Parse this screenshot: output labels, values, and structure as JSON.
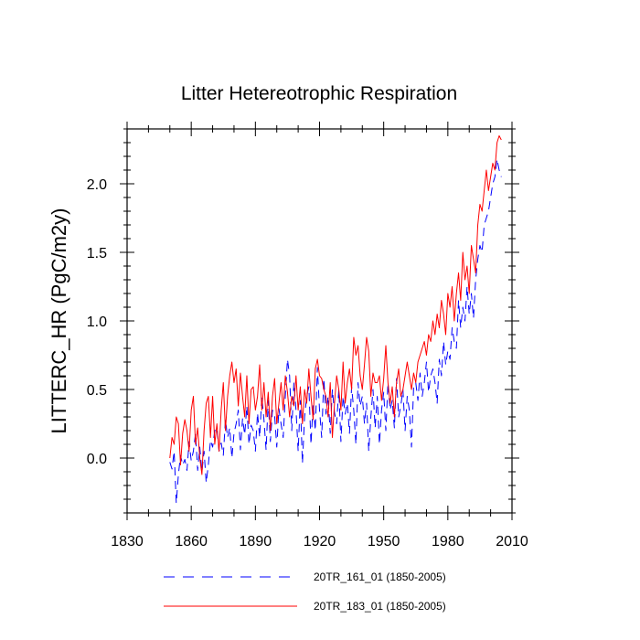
{
  "chart_data": {
    "type": "line",
    "title": "Litter Hetereotrophic Respiration",
    "xlabel": "",
    "ylabel": "LITTERC_HR  (PgC/m2y)",
    "xlim": [
      1830,
      2010
    ],
    "ylim": [
      -0.4,
      2.4
    ],
    "x_ticks": [
      "1830",
      "1860",
      "1890",
      "1920",
      "1950",
      "1980",
      "2010"
    ],
    "x_tick_values": [
      1830,
      1860,
      1890,
      1920,
      1950,
      1980,
      2010
    ],
    "y_ticks": [
      "0.0",
      "0.5",
      "1.0",
      "1.5",
      "2.0"
    ],
    "y_tick_values": [
      0.0,
      0.5,
      1.0,
      1.5,
      2.0
    ],
    "x_minor_step": 10,
    "y_minor_step": 0.1,
    "grid": false,
    "legend_position": "bottom",
    "series": [
      {
        "name": "20TR_161_01 (1850-2005)",
        "legend_label": "20TR_161_01 (1850-2005)",
        "color": "#0000ff",
        "dash": "dashed",
        "x_start": 1850,
        "x_step": 1,
        "values": [
          -0.03,
          -0.08,
          0.05,
          -0.33,
          -0.12,
          0.02,
          -0.05,
          -0.01,
          -0.09,
          0.12,
          -0.02,
          0.05,
          0.18,
          -0.09,
          0.08,
          -0.1,
          0.05,
          -0.18,
          -0.05,
          0.13,
          0.08,
          0.2,
          0.22,
          0.05,
          0.11,
          0.02,
          0.28,
          0.15,
          0.22,
          0.0,
          0.18,
          0.25,
          0.35,
          0.06,
          0.29,
          0.17,
          0.38,
          0.1,
          0.24,
          0.2,
          0.05,
          0.33,
          0.15,
          0.45,
          0.28,
          0.06,
          0.42,
          0.12,
          0.35,
          0.31,
          0.08,
          0.36,
          0.25,
          0.15,
          0.45,
          0.72,
          0.6,
          0.2,
          0.55,
          0.35,
          0.05,
          0.42,
          -0.04,
          0.3,
          0.45,
          0.52,
          0.1,
          0.4,
          0.2,
          0.66,
          0.35,
          0.15,
          0.58,
          0.32,
          0.45,
          0.18,
          0.5,
          0.33,
          0.25,
          0.5,
          0.12,
          0.45,
          0.32,
          0.4,
          0.18,
          0.52,
          0.35,
          0.1,
          0.55,
          0.38,
          0.45,
          0.25,
          0.4,
          0.05,
          0.3,
          0.5,
          0.22,
          0.45,
          0.1,
          0.35,
          0.48,
          0.2,
          0.55,
          0.35,
          0.42,
          0.22,
          0.58,
          0.3,
          0.38,
          0.5,
          0.2,
          0.45,
          0.35,
          0.08,
          0.52,
          0.55,
          0.42,
          0.62,
          0.45,
          0.55,
          0.7,
          0.48,
          0.6,
          0.65,
          0.55,
          0.4,
          0.72,
          0.6,
          0.85,
          0.68,
          0.78,
          0.72,
          0.95,
          0.85,
          0.8,
          1.15,
          0.95,
          1.1,
          1.0,
          1.25,
          1.05,
          1.2,
          1.02,
          1.3,
          1.45,
          1.55,
          1.5,
          1.7,
          1.75,
          1.8,
          1.9,
          2.0,
          2.05,
          2.18,
          2.1,
          2.05
        ]
      },
      {
        "name": "20TR_183_01 (1850-2005)",
        "legend_label": "20TR_183_01 (1850-2005)",
        "color": "#ff0000",
        "dash": "solid",
        "x_start": 1850,
        "x_step": 1,
        "values": [
          0.0,
          0.15,
          0.1,
          0.3,
          0.25,
          -0.05,
          0.18,
          0.28,
          0.2,
          0.05,
          0.35,
          0.45,
          0.1,
          0.22,
          0.0,
          -0.12,
          0.2,
          0.4,
          0.45,
          0.15,
          0.45,
          0.1,
          0.25,
          0.05,
          0.35,
          0.55,
          0.2,
          0.45,
          0.6,
          0.7,
          0.55,
          0.65,
          0.38,
          0.62,
          0.45,
          0.3,
          0.6,
          0.25,
          0.5,
          0.52,
          0.35,
          0.45,
          0.68,
          0.35,
          0.55,
          0.3,
          0.48,
          0.2,
          0.45,
          0.58,
          0.25,
          0.4,
          0.55,
          0.35,
          0.6,
          0.48,
          0.3,
          0.45,
          0.38,
          0.6,
          0.35,
          0.52,
          0.25,
          0.5,
          0.4,
          0.65,
          0.45,
          0.28,
          0.65,
          0.72,
          0.6,
          0.58,
          0.5,
          0.45,
          0.3,
          0.55,
          0.15,
          0.4,
          0.6,
          0.5,
          0.35,
          0.7,
          0.4,
          0.55,
          0.65,
          0.5,
          0.88,
          0.75,
          0.82,
          0.6,
          0.5,
          0.68,
          0.88,
          0.78,
          0.45,
          0.62,
          0.55,
          0.55,
          0.6,
          0.42,
          0.58,
          0.82,
          0.55,
          0.4,
          0.52,
          0.3,
          0.55,
          0.65,
          0.45,
          0.5,
          0.6,
          0.7,
          0.6,
          0.5,
          0.62,
          0.55,
          0.7,
          0.75,
          0.8,
          0.85,
          0.75,
          0.9,
          0.85,
          1.0,
          0.9,
          1.05,
          0.95,
          1.15,
          1.05,
          0.9,
          1.2,
          1.1,
          1.25,
          1.0,
          1.2,
          1.35,
          1.15,
          1.5,
          1.3,
          1.4,
          1.2,
          1.55,
          1.45,
          1.35,
          1.7,
          1.85,
          1.8,
          1.95,
          2.1,
          1.95,
          2.05,
          2.15,
          2.1,
          2.3,
          2.35,
          2.32
        ]
      }
    ]
  }
}
